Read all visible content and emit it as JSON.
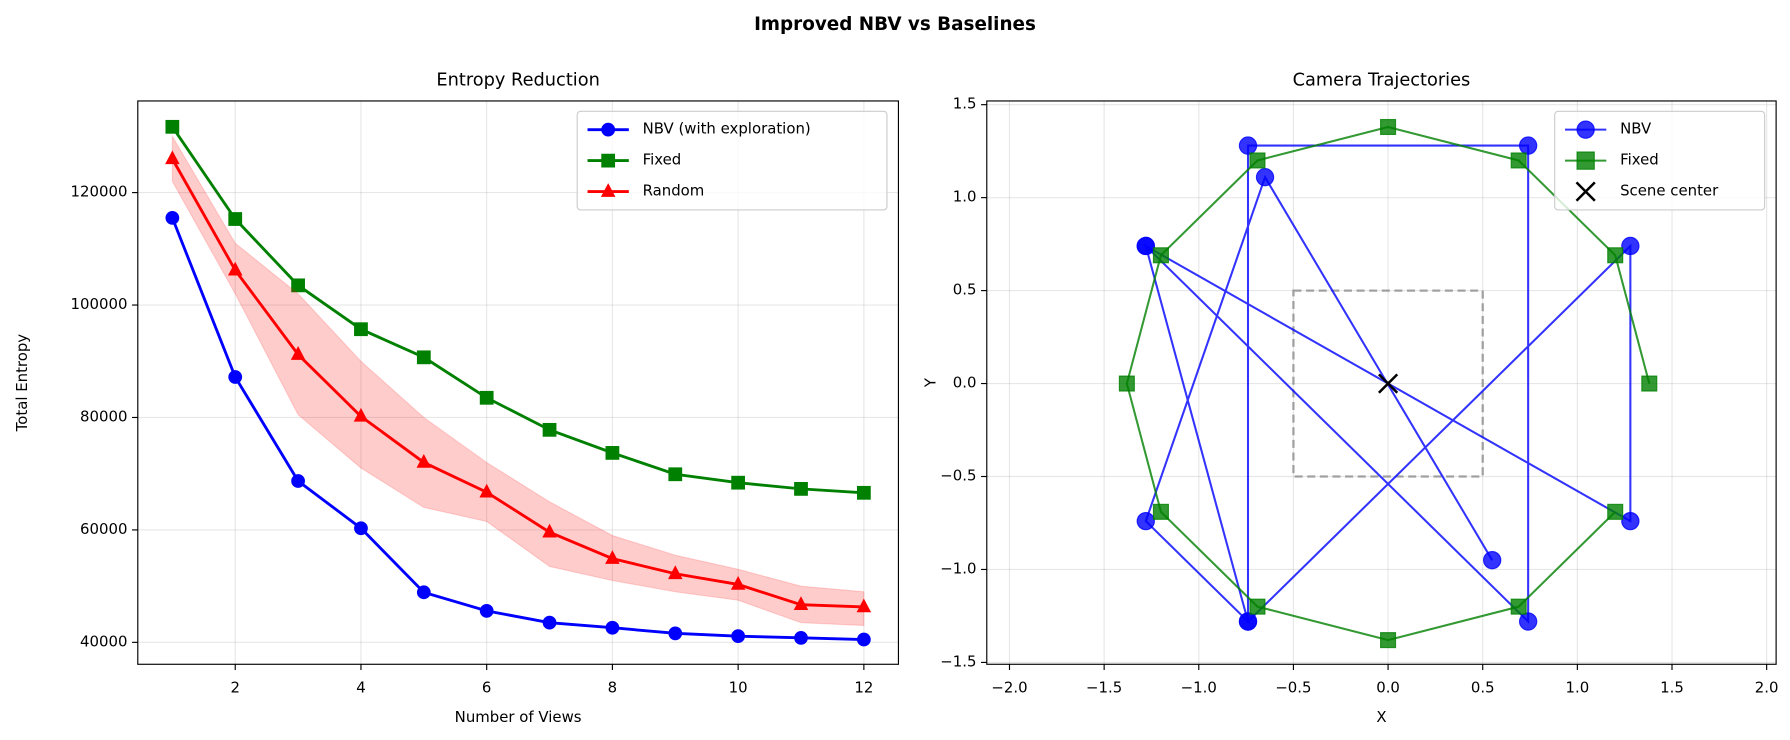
{
  "title": "Improved NBV vs Baselines",
  "chart_data": [
    {
      "type": "line",
      "title": "Entropy Reduction",
      "xlabel": "Number of Views",
      "ylabel": "Total Entropy",
      "x": [
        1,
        2,
        3,
        4,
        5,
        6,
        7,
        8,
        9,
        10,
        11,
        12
      ],
      "series": [
        {
          "name": "NBV (with exploration)",
          "color": "#0000ff",
          "marker": "circle",
          "values": [
            115500,
            87200,
            68700,
            60300,
            48900,
            45600,
            43500,
            42600,
            41600,
            41100,
            40800,
            40500
          ]
        },
        {
          "name": "Fixed",
          "color": "#008000",
          "marker": "square",
          "values": [
            131700,
            115300,
            103500,
            95700,
            90700,
            83500,
            77800,
            73700,
            69900,
            68400,
            67300,
            66600
          ]
        },
        {
          "name": "Random",
          "color": "#ff0000",
          "marker": "triangle",
          "values": [
            126000,
            106200,
            91200,
            80200,
            72000,
            66700,
            59600,
            54900,
            52200,
            50300,
            46700,
            46300
          ],
          "lower": [
            122000,
            102000,
            80500,
            71000,
            64000,
            61500,
            53500,
            51000,
            49000,
            47500,
            43500,
            43000
          ],
          "upper": [
            130000,
            111000,
            102000,
            90000,
            80000,
            72000,
            65000,
            59000,
            55500,
            53000,
            50000,
            49000
          ]
        }
      ],
      "xlim": [
        0.45,
        12.55
      ],
      "ylim": [
        36100,
        136300
      ],
      "xticks": [
        2,
        4,
        6,
        8,
        10,
        12
      ],
      "yticks": [
        40000,
        60000,
        80000,
        100000,
        120000
      ],
      "grid": true,
      "legend": "upper right"
    },
    {
      "type": "scatter",
      "title": "Camera Trajectories",
      "xlabel": "X",
      "ylabel": "Y",
      "series": [
        {
          "name": "NBV",
          "color": "#0000ff",
          "marker": "circle",
          "line": true,
          "x": [
            -1.28,
            1.28,
            1.28,
            -0.74,
            -0.74,
            0.74,
            0.74,
            -1.28,
            -0.74,
            -1.28,
            -0.65,
            0.55
          ],
          "values": [
            0.74,
            -0.74,
            0.74,
            -1.28,
            1.28,
            1.28,
            -1.28,
            0.74,
            -1.28,
            -0.74,
            1.11,
            -0.95
          ]
        },
        {
          "name": "Fixed",
          "color": "#008000",
          "marker": "square",
          "line": true,
          "x": [
            1.38,
            1.2,
            0.69,
            0,
            -0.69,
            -1.2,
            -1.38,
            -1.2,
            -0.69,
            0,
            0.69,
            1.2
          ],
          "values": [
            0,
            0.69,
            1.2,
            1.38,
            1.2,
            0.69,
            0,
            -0.69,
            -1.2,
            -1.38,
            -1.2,
            -0.69
          ]
        },
        {
          "name": "Scene center",
          "color": "#000000",
          "marker": "x",
          "line": false,
          "x": [
            0
          ],
          "values": [
            0
          ]
        }
      ],
      "scene_bounds": [
        -0.5,
        0.5
      ],
      "xlim": [
        -2.12,
        2.05
      ],
      "ylim": [
        -1.51,
        1.52
      ],
      "xticks": [
        {
          "value": -2,
          "label": "−2.0"
        },
        {
          "value": -1.5,
          "label": "−1.5"
        },
        {
          "value": -1,
          "label": "−1.0"
        },
        {
          "value": -0.5,
          "label": "−0.5"
        },
        {
          "value": 0,
          "label": "0.0"
        },
        {
          "value": 0.5,
          "label": "0.5"
        },
        {
          "value": 1,
          "label": "1.0"
        },
        {
          "value": 1.5,
          "label": "1.5"
        },
        {
          "value": 2,
          "label": "2.0"
        }
      ],
      "yticks": [
        {
          "value": -1.5,
          "label": "−1.5"
        },
        {
          "value": -1,
          "label": "−1.0"
        },
        {
          "value": -0.5,
          "label": "−0.5"
        },
        {
          "value": 0,
          "label": "0.0"
        },
        {
          "value": 0.5,
          "label": "0.5"
        },
        {
          "value": 1,
          "label": "1.0"
        },
        {
          "value": 1.5,
          "label": "1.5"
        }
      ],
      "grid": true,
      "legend": "upper right"
    }
  ]
}
